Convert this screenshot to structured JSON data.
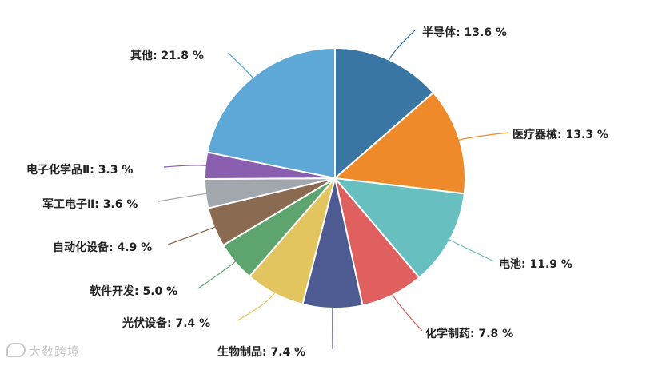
{
  "chart_data": {
    "type": "pie",
    "title": "",
    "slices": [
      {
        "label": "半导体",
        "value": 13.6,
        "display": "半导体: 13.6 %",
        "color": "#3a76a3"
      },
      {
        "label": "医疗器械",
        "value": 13.3,
        "display": "医疗器械: 13.3 %",
        "color": "#ef8a2a"
      },
      {
        "label": "电池",
        "value": 11.9,
        "display": "电池: 11.9 %",
        "color": "#67bfbf"
      },
      {
        "label": "化学制药",
        "value": 7.8,
        "display": "化学制药: 7.8 %",
        "color": "#e05f5f"
      },
      {
        "label": "生物制品",
        "value": 7.4,
        "display": "生物制品: 7.4 %",
        "color": "#4e5a92"
      },
      {
        "label": "光伏设备",
        "value": 7.4,
        "display": "光伏设备: 7.4 %",
        "color": "#e2c55e"
      },
      {
        "label": "软件开发",
        "value": 5.0,
        "display": "软件开发: 5.0 %",
        "color": "#5ea46f"
      },
      {
        "label": "自动化设备",
        "value": 4.9,
        "display": "自动化设备: 4.9 %",
        "color": "#8a6a50"
      },
      {
        "label": "军工电子Ⅱ",
        "value": 3.6,
        "display": "军工电子Ⅱ: 3.6 %",
        "color": "#a1a7ad"
      },
      {
        "label": "电子化学品Ⅱ",
        "value": 3.3,
        "display": "电子化学品Ⅱ: 3.3 %",
        "color": "#8a5fb0"
      },
      {
        "label": "其他",
        "value": 21.8,
        "display": "其他: 21.8 %",
        "color": "#5ea8d8"
      }
    ],
    "legend": "none",
    "start": "top",
    "direction": "clockwise"
  },
  "watermark": {
    "text": "大数跨境",
    "icon": "speech-bubble-icon"
  }
}
